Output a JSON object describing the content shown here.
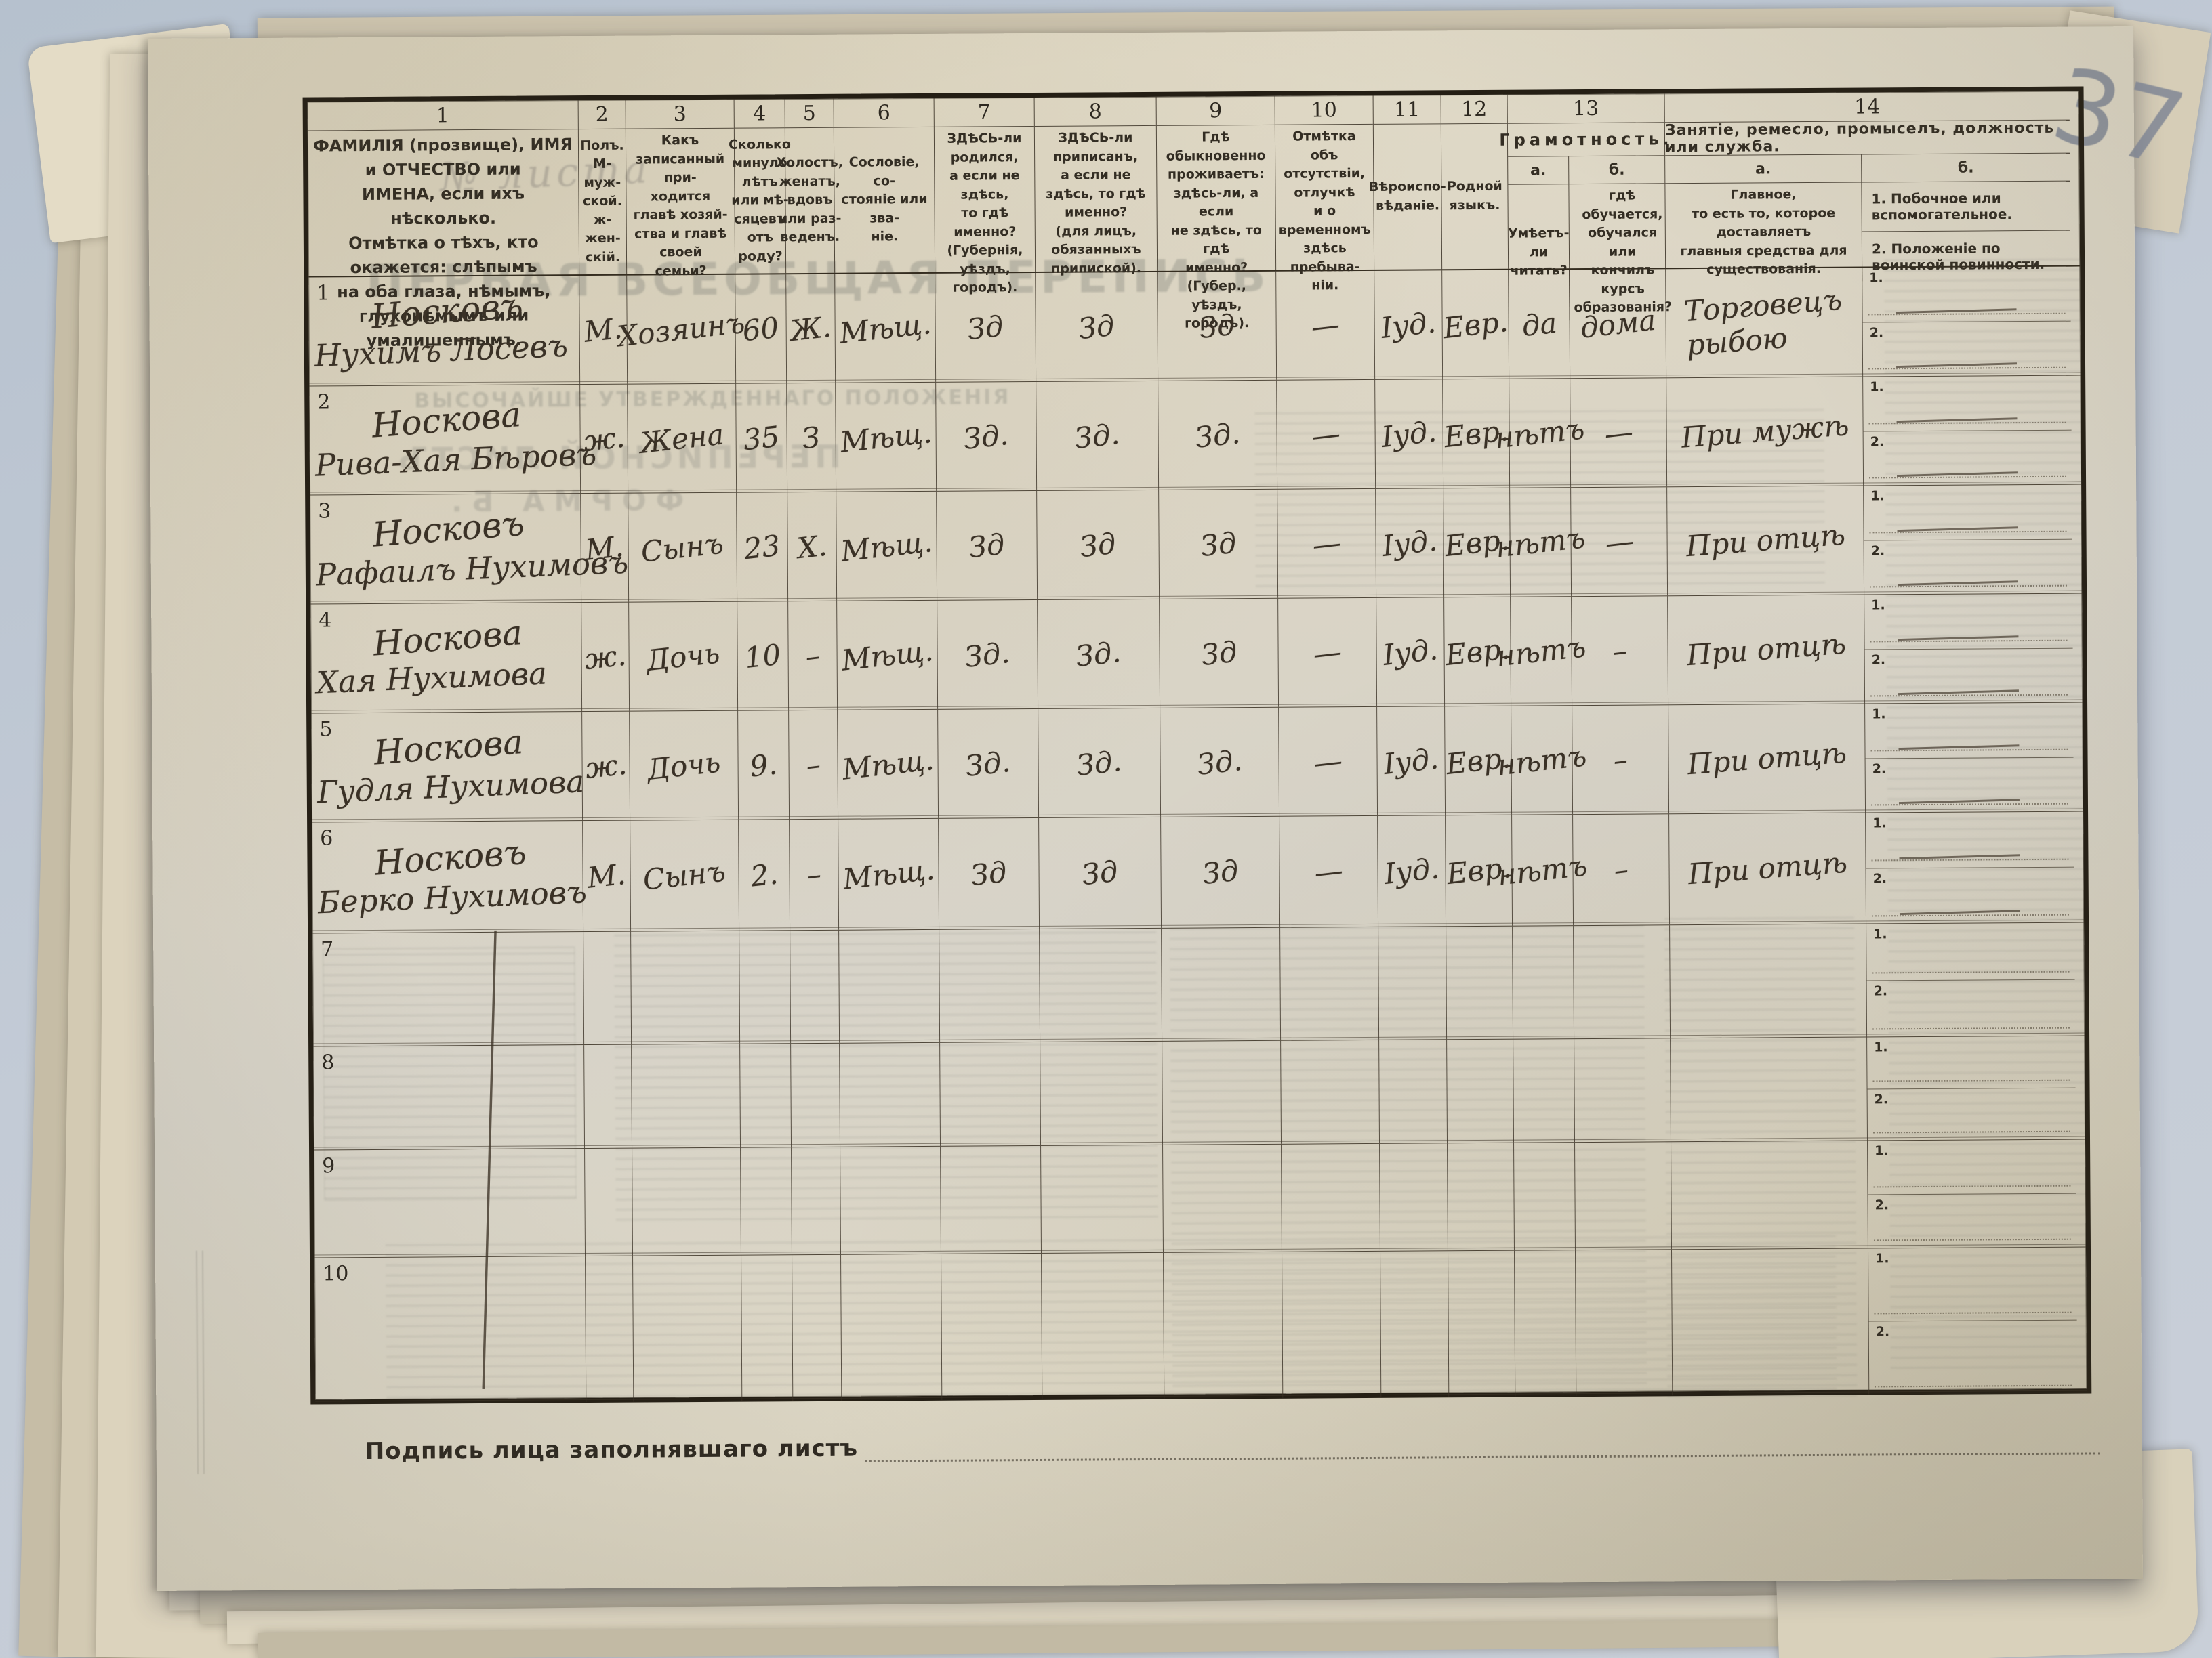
{
  "colors": {
    "background": "#c3cbd6",
    "paper": "#dcd5c3",
    "ink": "#3a3126",
    "print": "#332d23",
    "pencil": "#7a8292"
  },
  "page": {
    "corner_number": "37",
    "signature_caption": "Подпись лица заполнявшаго листъ"
  },
  "ghosts": {
    "sheet_no": "№ листа",
    "title": "ПЕРВАЯ ВСЕОБЩАЯ ПЕРЕПИСЬ",
    "subtitle": "ВЫСОЧАЙШЕ УТВЕРЖДЕННАГО ПОЛОЖЕНІЯ",
    "sheet": "ПЕРЕПИСНОЙ ЛИСТЪ",
    "form": "ФОРМА Б."
  },
  "table": {
    "columns": [
      {
        "num": "1",
        "desc": "ФАМИЛІЯ (прозвище), ИМЯ и ОТЧЕСТВО или\nИМЕНА, если ихъ нѣсколько.\nОтмѣтка о тѣхъ, кто окажется: слѣпымъ\nна оба глаза, нѣмымъ, глухонѣмымъ или\nумалишеннымъ."
      },
      {
        "num": "2",
        "desc": "Полъ.\nМ-муж-\nской.\nж-жен-\nскій."
      },
      {
        "num": "3",
        "desc": "Какъ записанный при-\nходится главѣ хозяй-\nства и главѣ своей\nсемьи?"
      },
      {
        "num": "4",
        "desc": "Сколько\nминуло\nлѣтъ\nили мѣ-\nсяцевъ\nотъ роду?"
      },
      {
        "num": "5",
        "desc": "Холостъ,\nженатъ,\nвдовъ\nили раз-\nведенъ."
      },
      {
        "num": "6",
        "desc": "Сословіе, со-\nстояніе или зва-\nніе."
      },
      {
        "num": "7",
        "desc": "ЗДѢСЬ-ли родился,\nа если не здѣсь,\nто гдѣ именно?\n(Губернія, уѣздъ, городъ)."
      },
      {
        "num": "8",
        "desc": "ЗДѢСЬ-ли приписанъ,\nа если не здѣсь, то гдѣ\nименно?\n(для лицъ, обязанныхъ\nприпиской)."
      },
      {
        "num": "9",
        "desc": "Гдѣ обыкновенно\nпроживаетъ:\nздѣсь-ли, а если\nне здѣсь, то гдѣ\nименно?\n(Губер., уѣздъ, городъ)."
      },
      {
        "num": "10",
        "desc": "Отмѣтка объ\nотсутствіи, отлучкѣ\nи о временномъ\nздѣсь пребыва-\nніи."
      },
      {
        "num": "11",
        "desc": "Вѣроиспо-\nвѣданіе."
      },
      {
        "num": "12",
        "desc": "Родной\nязыкъ."
      }
    ],
    "col13": {
      "num": "13",
      "title": "Грамотность.",
      "sub_a_label": "а.",
      "sub_b_label": "б.",
      "sub_a": "Умѣетъ-\nли\nчитать?",
      "sub_b": "гдѣ обучается,\nобучался или\nкончилъ курсъ\nобразованія?"
    },
    "col14": {
      "num": "14",
      "title": "Занятіе, ремесло, промыселъ, должность или служба.",
      "sub_a_label": "а.",
      "sub_b_label": "б.",
      "sub_a": "Главное,\nто есть то, которое доставляетъ\nглавныя средства для существованія.",
      "sub_b_1": "1.  Побочное или вспомогательное.",
      "sub_b_2": "2.  Положеніе по воинской повинности."
    },
    "sub_row_labels": [
      "1.",
      "2."
    ]
  },
  "rows": [
    {
      "num": "1",
      "surname": "Носковъ",
      "name": "Нухимъ Лосевъ",
      "sex": "М.",
      "relation": "Хозяинъ",
      "age": "60",
      "marital": "Ж.",
      "estate": "Мѣщ.",
      "born": "Зд",
      "registered": "Зд",
      "lives": "Зд",
      "absence": "—",
      "religion": "Іуд.",
      "language": "Евр.",
      "reads": "да",
      "studies": "дома",
      "occupation": "Торговецъ\nрыбою"
    },
    {
      "num": "2",
      "surname": "Носкова",
      "name": "Рива-Хая Бѣровъ",
      "sex": "ж.",
      "relation": "Жена",
      "age": "35",
      "marital": "З",
      "estate": "Мѣщ.",
      "born": "Зд.",
      "registered": "Зд.",
      "lives": "Зд.",
      "absence": "—",
      "religion": "Іуд.",
      "language": "Евр.",
      "reads": "нѣтъ",
      "studies": "—",
      "occupation": "При мужѣ"
    },
    {
      "num": "3",
      "surname": "Носковъ",
      "name": "Рафаилъ Нухимовъ",
      "sex": "М.",
      "relation": "Сынъ",
      "age": "23",
      "marital": "Х.",
      "estate": "Мѣщ.",
      "born": "Зд",
      "registered": "Зд",
      "lives": "Зд",
      "absence": "—",
      "religion": "Іуд.",
      "language": "Евр.",
      "reads": "нѣтъ",
      "studies": "—",
      "occupation": "При отцѣ"
    },
    {
      "num": "4",
      "surname": "Носкова",
      "name": "Хая Нухимова",
      "sex": "ж.",
      "relation": "Дочь",
      "age": "10",
      "marital": "–",
      "estate": "Мѣщ.",
      "born": "Зд.",
      "registered": "Зд.",
      "lives": "Зд",
      "absence": "—",
      "religion": "Іуд.",
      "language": "Евр.",
      "reads": "нѣтъ",
      "studies": "–",
      "occupation": "При отцѣ"
    },
    {
      "num": "5",
      "surname": "Носкова",
      "name": "Гудля Нухимова",
      "sex": "ж.",
      "relation": "Дочь",
      "age": "9.",
      "marital": "–",
      "estate": "Мѣщ.",
      "born": "Зд.",
      "registered": "Зд.",
      "lives": "Зд.",
      "absence": "—",
      "religion": "Іуд.",
      "language": "Евр.",
      "reads": "нѣтъ",
      "studies": "–",
      "occupation": "При отцѣ"
    },
    {
      "num": "6",
      "surname": "Носковъ",
      "name": "Берко Нухимовъ",
      "sex": "М.",
      "relation": "Сынъ",
      "age": "2.",
      "marital": "–",
      "estate": "Мѣщ.",
      "born": "Зд",
      "registered": "Зд",
      "lives": "Зд",
      "absence": "—",
      "religion": "Іуд.",
      "language": "Евр.",
      "reads": "нѣтъ",
      "studies": "–",
      "occupation": "При отцѣ"
    },
    {
      "num": "7",
      "surname": "",
      "name": "",
      "sex": "",
      "relation": "",
      "age": "",
      "marital": "",
      "estate": "",
      "born": "",
      "registered": "",
      "lives": "",
      "absence": "",
      "religion": "",
      "language": "",
      "reads": "",
      "studies": "",
      "occupation": ""
    },
    {
      "num": "8",
      "surname": "",
      "name": "",
      "sex": "",
      "relation": "",
      "age": "",
      "marital": "",
      "estate": "",
      "born": "",
      "registered": "",
      "lives": "",
      "absence": "",
      "religion": "",
      "language": "",
      "reads": "",
      "studies": "",
      "occupation": ""
    },
    {
      "num": "9",
      "surname": "",
      "name": "",
      "sex": "",
      "relation": "",
      "age": "",
      "marital": "",
      "estate": "",
      "born": "",
      "registered": "",
      "lives": "",
      "absence": "",
      "religion": "",
      "language": "",
      "reads": "",
      "studies": "",
      "occupation": ""
    },
    {
      "num": "10",
      "surname": "",
      "name": "",
      "sex": "",
      "relation": "",
      "age": "",
      "marital": "",
      "estate": "",
      "born": "",
      "registered": "",
      "lives": "",
      "absence": "",
      "religion": "",
      "language": "",
      "reads": "",
      "studies": "",
      "occupation": ""
    }
  ]
}
